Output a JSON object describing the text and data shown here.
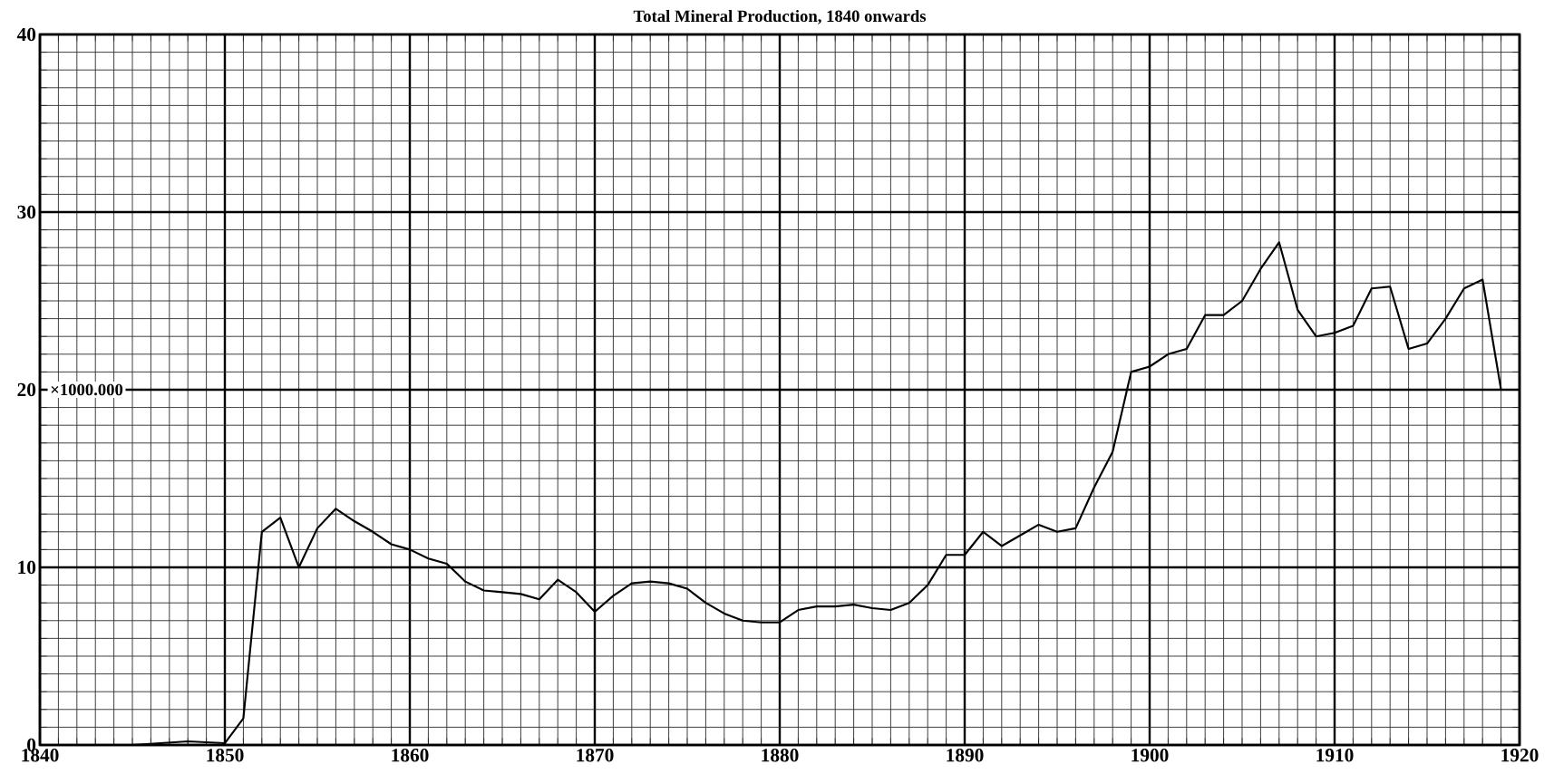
{
  "chart_data": {
    "type": "line",
    "title": "Total Mineral Production, 1840 onwards",
    "ylabel": "×1000.000",
    "x": [
      1845,
      1848,
      1850,
      1851,
      1852,
      1853,
      1854,
      1855,
      1856,
      1857,
      1858,
      1859,
      1860,
      1861,
      1862,
      1863,
      1864,
      1865,
      1866,
      1867,
      1868,
      1869,
      1870,
      1871,
      1872,
      1873,
      1874,
      1875,
      1876,
      1877,
      1878,
      1879,
      1880,
      1881,
      1882,
      1883,
      1884,
      1885,
      1886,
      1887,
      1888,
      1889,
      1890,
      1891,
      1892,
      1893,
      1894,
      1895,
      1896,
      1897,
      1898,
      1899,
      1900,
      1901,
      1902,
      1903,
      1904,
      1905,
      1906,
      1907,
      1908,
      1909,
      1910,
      1911,
      1912,
      1913,
      1914,
      1915,
      1916,
      1917,
      1918,
      1919
    ],
    "series": [
      {
        "color": "#000000",
        "values": [
          0,
          0.2,
          0.1,
          1.5,
          12,
          12.8,
          10,
          12.2,
          13.3,
          12.6,
          12,
          11.3,
          11,
          10.5,
          10.2,
          9.2,
          8.7,
          8.6,
          8.5,
          8.2,
          9.3,
          8.6,
          7.5,
          8.4,
          9.1,
          9.2,
          9.1,
          8.8,
          8,
          7.4,
          7,
          6.9,
          6.9,
          7.6,
          7.8,
          7.8,
          7.9,
          7.7,
          7.6,
          8,
          9,
          10.7,
          10.7,
          12,
          11.2,
          11.8,
          12.4,
          12,
          12.2,
          14.5,
          16.5,
          21,
          21.3,
          22,
          22.3,
          24.2,
          24.2,
          25,
          26.8,
          28.3,
          24.5,
          23,
          23.2,
          23.6,
          25.7,
          25.8,
          22.3,
          22.6,
          24,
          25.7,
          26.2,
          20
        ]
      }
    ],
    "xlim": [
      1840,
      1920
    ],
    "ylim": [
      0,
      40
    ],
    "xticks": [
      1840,
      1850,
      1860,
      1870,
      1880,
      1890,
      1900,
      1910,
      1920
    ],
    "yticks": [
      0,
      10,
      20,
      30,
      40
    ],
    "grid": true,
    "marker": "none",
    "line_style": "solid"
  }
}
